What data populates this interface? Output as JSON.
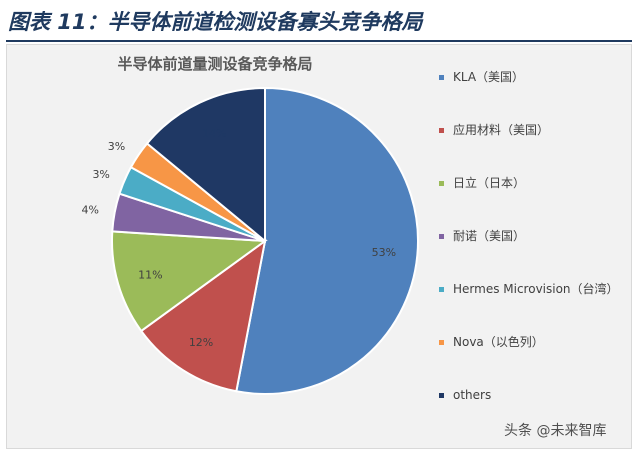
{
  "figure": {
    "caption": "图表 11：半导体前道检测设备寡头竞争格局",
    "watermark": "头条 @未来智库"
  },
  "chart_data": {
    "type": "pie",
    "title": "半导体前道量测设备竞争格局",
    "legend_position": "right",
    "series": [
      {
        "name": "KLA（美国）",
        "value": 53,
        "label": "53%",
        "color": "#4f81bd"
      },
      {
        "name": "应用材料（美国）",
        "value": 12,
        "label": "12%",
        "color": "#c0504d"
      },
      {
        "name": "日立（日本）",
        "value": 11,
        "label": "11%",
        "color": "#9bbb59"
      },
      {
        "name": "耐诺（美国）",
        "value": 4,
        "label": "4%",
        "color": "#8064a2"
      },
      {
        "name": "Hermes Microvision（台湾）",
        "value": 3,
        "label": "3%",
        "color": "#4bacc6"
      },
      {
        "name": "Nova（以色列）",
        "value": 3,
        "label": "3%",
        "color": "#f79646"
      },
      {
        "name": "others",
        "value": 14,
        "label": "14%",
        "color": "#1f3864"
      }
    ]
  }
}
